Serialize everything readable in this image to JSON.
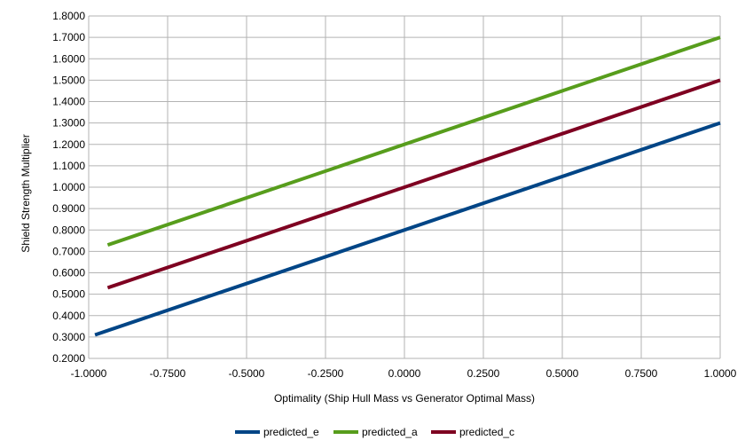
{
  "chart_data": {
    "type": "line",
    "title": "",
    "xlabel": "Optimality (Ship Hull Mass vs Generator Optimal Mass)",
    "ylabel": "Shield Strength Multiplier",
    "xlim": [
      -1.0,
      1.0
    ],
    "ylim": [
      0.2,
      1.8
    ],
    "x_ticks": [
      -1.0,
      -0.75,
      -0.5,
      -0.25,
      0.0,
      0.25,
      0.5,
      0.75,
      1.0
    ],
    "x_tick_labels": [
      "-1.0000",
      "-0.7500",
      "-0.5000",
      "-0.2500",
      "0.0000",
      "0.2500",
      "0.5000",
      "0.7500",
      "1.0000"
    ],
    "y_ticks": [
      0.2,
      0.3,
      0.4,
      0.5,
      0.6,
      0.7,
      0.8,
      0.9,
      1.0,
      1.1,
      1.2,
      1.3,
      1.4,
      1.5,
      1.6,
      1.7,
      1.8
    ],
    "y_tick_labels": [
      "0.2000",
      "0.3000",
      "0.4000",
      "0.5000",
      "0.6000",
      "0.7000",
      "0.8000",
      "0.9000",
      "1.0000",
      "1.1000",
      "1.2000",
      "1.3000",
      "1.4000",
      "1.5000",
      "1.6000",
      "1.7000",
      "1.8000"
    ],
    "grid": true,
    "legend_position": "bottom",
    "series": [
      {
        "name": "predicted_e",
        "color": "#004586",
        "points": [
          [
            -0.98,
            0.31
          ],
          [
            1.0,
            1.3
          ]
        ]
      },
      {
        "name": "predicted_a",
        "color": "#579d1c",
        "points": [
          [
            -0.94,
            0.73
          ],
          [
            1.0,
            1.7
          ]
        ]
      },
      {
        "name": "predicted_c",
        "color": "#7e0021",
        "points": [
          [
            -0.94,
            0.53
          ],
          [
            1.0,
            1.5
          ]
        ]
      }
    ]
  }
}
